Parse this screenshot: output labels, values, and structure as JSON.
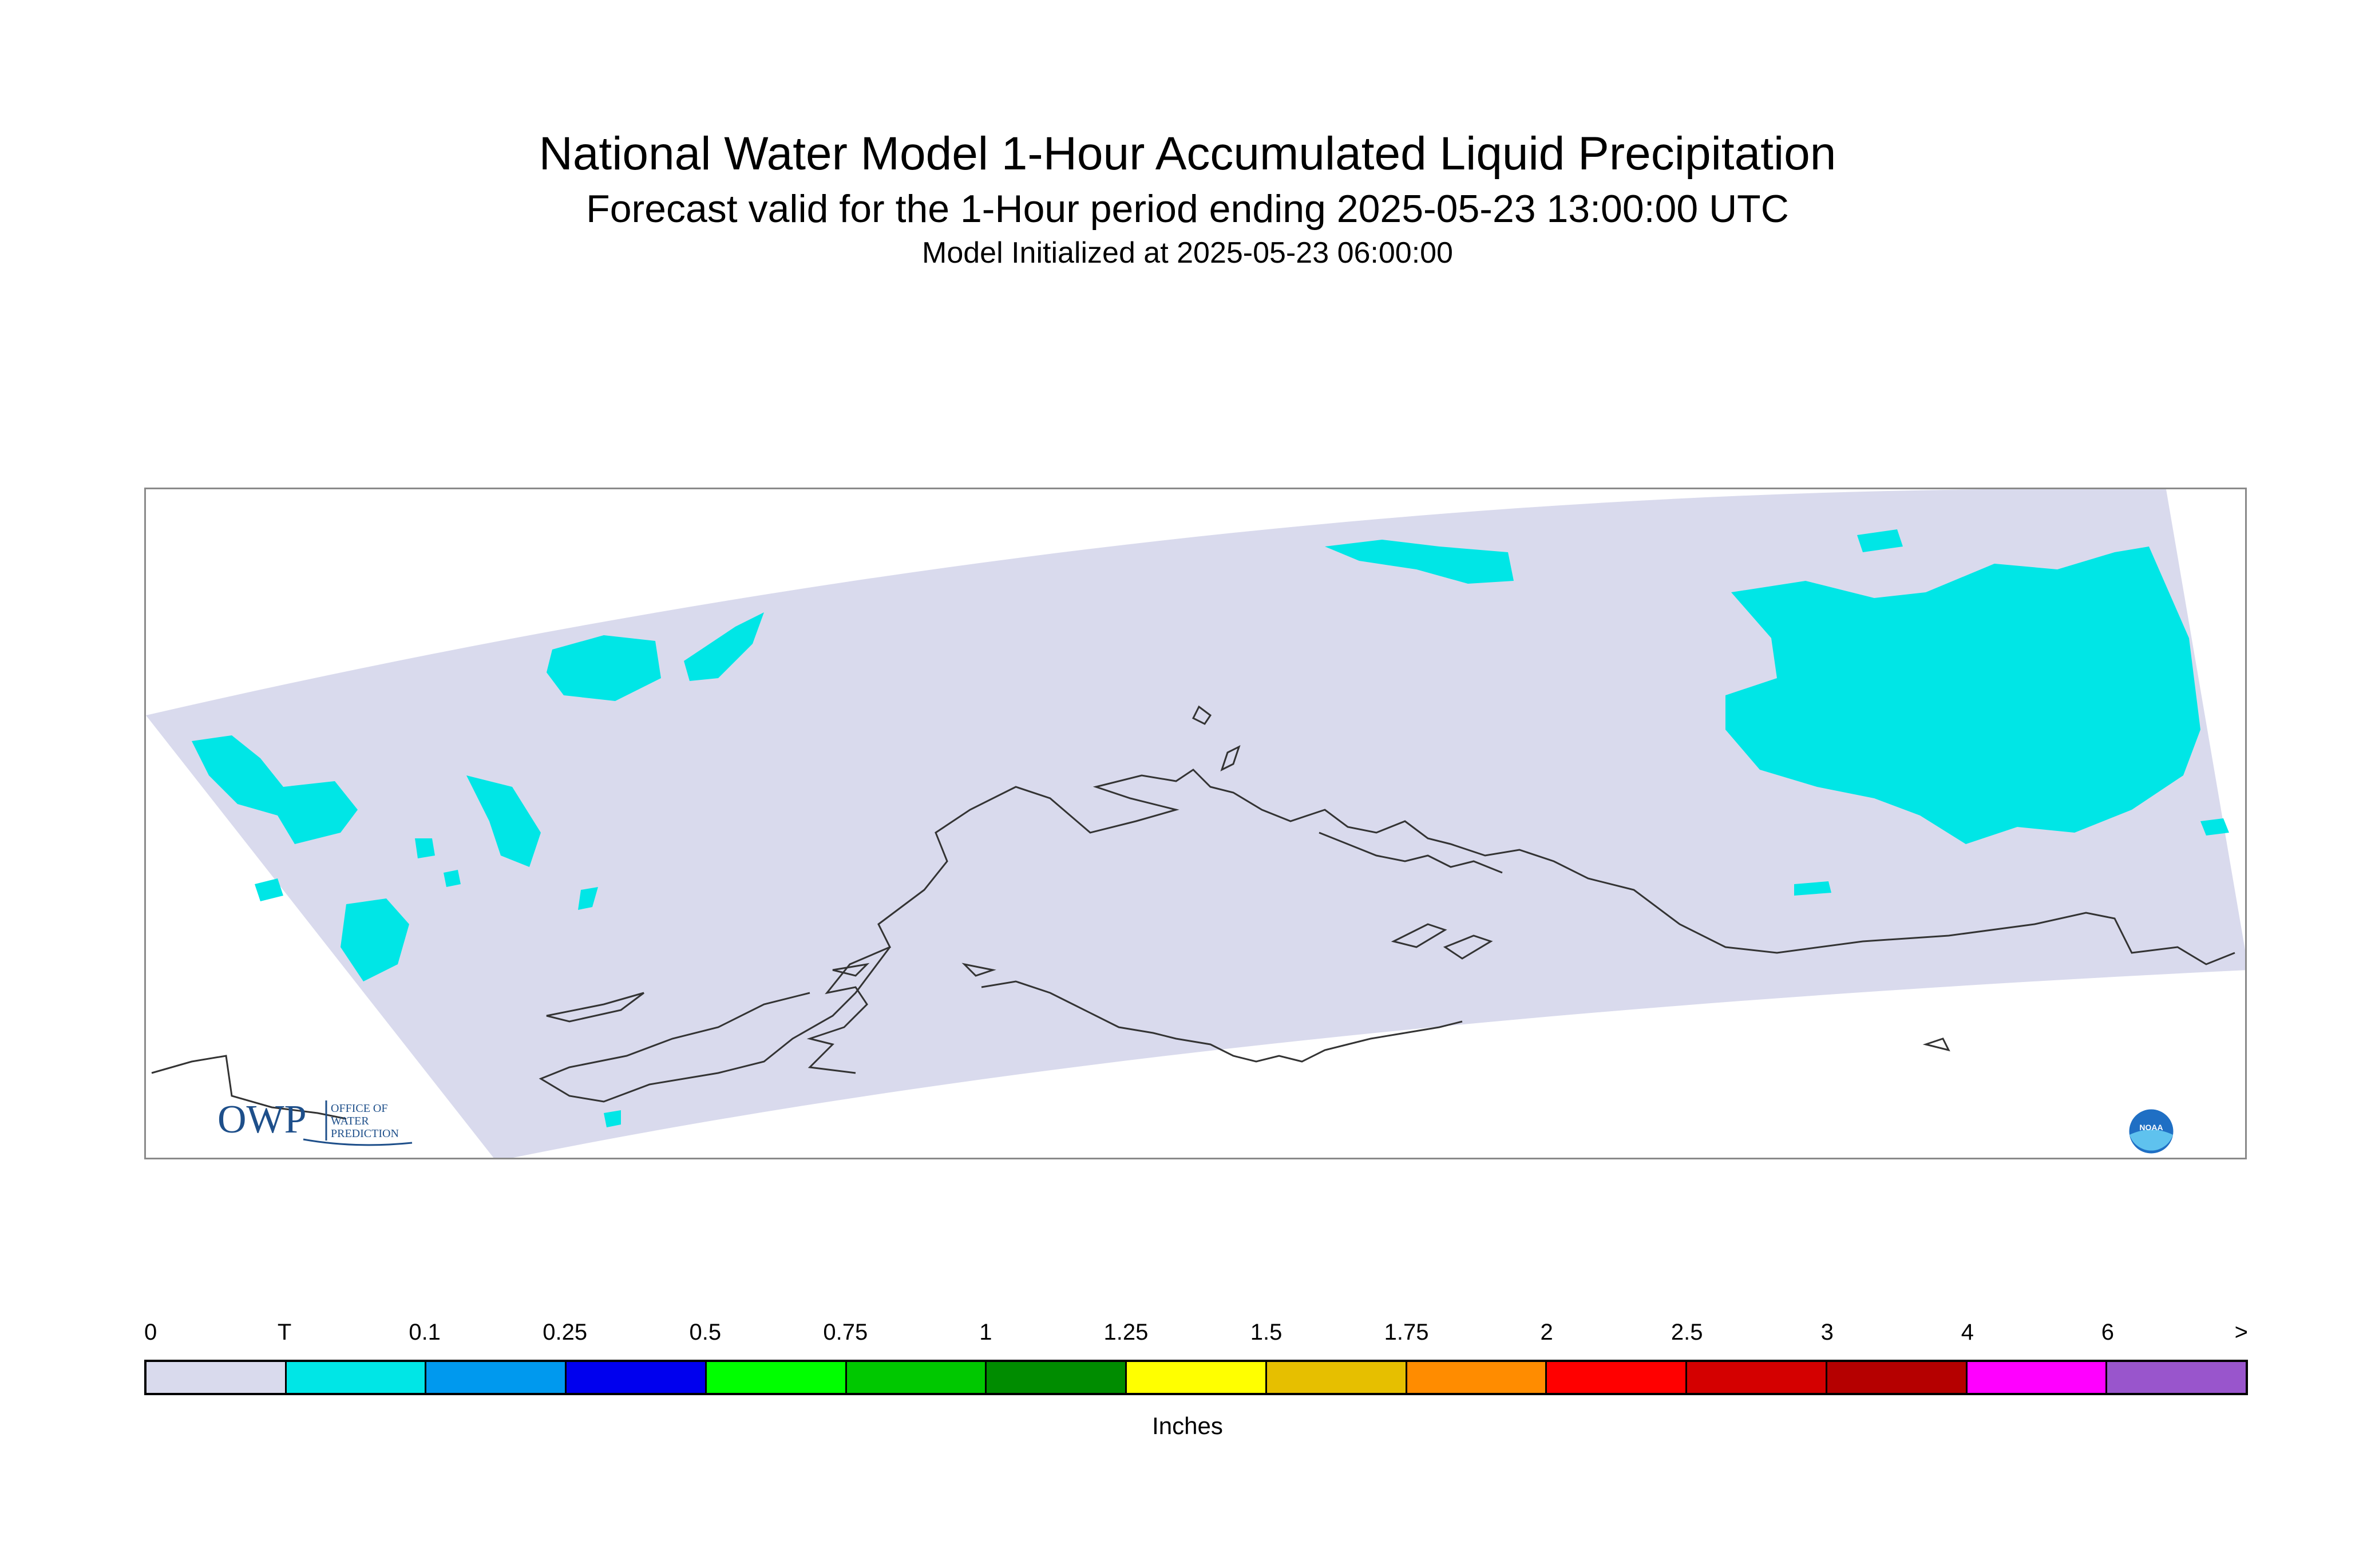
{
  "header": {
    "title": "National Water Model 1-Hour Accumulated Liquid Precipitation",
    "subtitle": "Forecast valid for the 1-Hour period ending 2025-05-23 13:00:00 UTC",
    "init_line": "Model Initialized at 2025-05-23 06:00:00"
  },
  "logos": {
    "owp_text": "OWP",
    "owp_subtext": [
      "OFFICE OF",
      "WATER",
      "PREDICTION"
    ],
    "noaa_text": "NOAA"
  },
  "colors": {
    "domain_fill": "#d9daed",
    "trace": "#00e6e6",
    "coastline": "#333333"
  },
  "legend": {
    "units": "Inches",
    "tick_labels": [
      "0",
      "T",
      "0.1",
      "0.25",
      "0.5",
      "0.75",
      "1",
      "1.25",
      "1.5",
      "1.75",
      "2",
      "2.5",
      "3",
      "4",
      "6",
      ">"
    ],
    "bins": [
      {
        "color": "#d9daed"
      },
      {
        "color": "#00e6e6"
      },
      {
        "color": "#0099ee"
      },
      {
        "color": "#0000ee"
      },
      {
        "color": "#00ff00"
      },
      {
        "color": "#00c800"
      },
      {
        "color": "#008c00"
      },
      {
        "color": "#ffff00"
      },
      {
        "color": "#e6bf00"
      },
      {
        "color": "#ff8c00"
      },
      {
        "color": "#ff0000"
      },
      {
        "color": "#d40000"
      },
      {
        "color": "#b50000"
      },
      {
        "color": "#ff00ff"
      },
      {
        "color": "#9955cc"
      }
    ]
  }
}
